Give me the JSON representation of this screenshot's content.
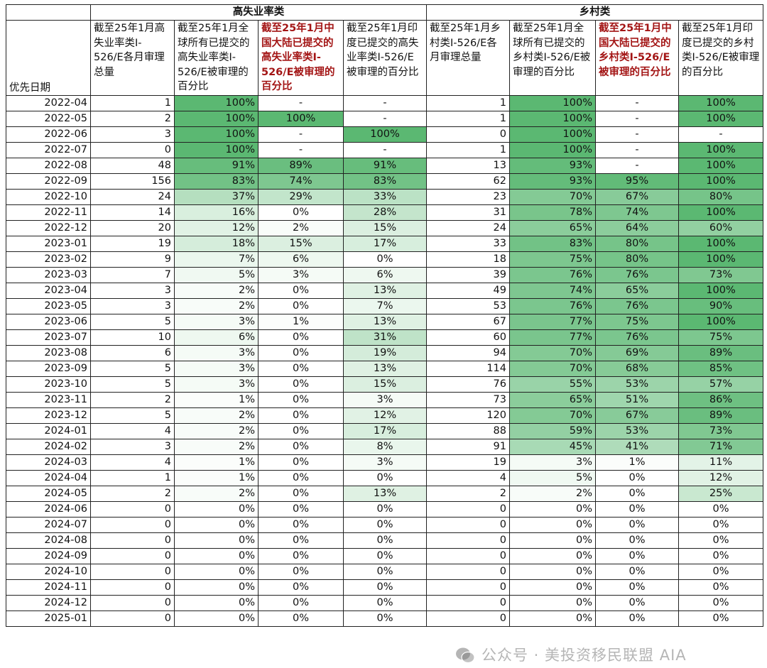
{
  "groups": {
    "corner": "",
    "high_unemployment": "高失业率类",
    "rural": "乡村类"
  },
  "headers": [
    {
      "text": "优先日期",
      "highlight": false
    },
    {
      "text": "截至25年1月高失业率类I-526/E各月审理总量",
      "highlight": false
    },
    {
      "text": "截至25年1月全球所有已提交的高失业率类I-526/E被审理的百分比",
      "highlight": false
    },
    {
      "text": "截至25年1月中国大陆已提交的高失业率类I-526/E被审理的百分比",
      "highlight": true
    },
    {
      "text": "截至25年1月印度已提交的高失业率类I-526/E被审理的百分比",
      "highlight": false
    },
    {
      "text": "截至25年1月乡村类I-526/E各月审理总量",
      "highlight": false
    },
    {
      "text": "截至25年1月全球所有已提交的乡村类I-526/E被审理的百分比",
      "highlight": false
    },
    {
      "text": "截至25年1月中国大陆已提交的乡村类I-526/E被审理的百分比",
      "highlight": true
    },
    {
      "text": "截至25年1月印度已提交的乡村类I-526/E被审理的百分比",
      "highlight": false
    }
  ],
  "colors": {
    "highlight_text": "#a31515",
    "scale_low": "#ffffff",
    "scale_high": "#5bb872"
  },
  "rows": [
    [
      "2022-04",
      "1",
      "100%",
      "-",
      "-",
      "1",
      "100%",
      "-",
      "100%"
    ],
    [
      "2022-05",
      "2",
      "100%",
      "100%",
      "-",
      "1",
      "100%",
      "-",
      "100%"
    ],
    [
      "2022-06",
      "3",
      "100%",
      "-",
      "100%",
      "0",
      "100%",
      "-",
      "-"
    ],
    [
      "2022-07",
      "0",
      "100%",
      "-",
      "-",
      "1",
      "100%",
      "-",
      "100%"
    ],
    [
      "2022-08",
      "48",
      "91%",
      "89%",
      "91%",
      "13",
      "93%",
      "-",
      "100%"
    ],
    [
      "2022-09",
      "156",
      "83%",
      "74%",
      "83%",
      "62",
      "93%",
      "95%",
      "100%"
    ],
    [
      "2022-10",
      "24",
      "37%",
      "29%",
      "33%",
      "23",
      "70%",
      "67%",
      "80%"
    ],
    [
      "2022-11",
      "14",
      "16%",
      "0%",
      "28%",
      "31",
      "78%",
      "74%",
      "100%"
    ],
    [
      "2022-12",
      "20",
      "12%",
      "2%",
      "15%",
      "24",
      "65%",
      "64%",
      "60%"
    ],
    [
      "2023-01",
      "19",
      "18%",
      "15%",
      "17%",
      "33",
      "83%",
      "80%",
      "100%"
    ],
    [
      "2023-02",
      "9",
      "7%",
      "6%",
      "0%",
      "18",
      "75%",
      "80%",
      "100%"
    ],
    [
      "2023-03",
      "7",
      "5%",
      "3%",
      "6%",
      "39",
      "76%",
      "76%",
      "73%"
    ],
    [
      "2023-04",
      "3",
      "2%",
      "0%",
      "13%",
      "49",
      "74%",
      "65%",
      "100%"
    ],
    [
      "2023-05",
      "3",
      "2%",
      "0%",
      "7%",
      "53",
      "76%",
      "76%",
      "90%"
    ],
    [
      "2023-06",
      "5",
      "3%",
      "1%",
      "13%",
      "67",
      "77%",
      "75%",
      "100%"
    ],
    [
      "2023-07",
      "10",
      "6%",
      "0%",
      "31%",
      "60",
      "77%",
      "76%",
      "75%"
    ],
    [
      "2023-08",
      "6",
      "3%",
      "0%",
      "19%",
      "94",
      "70%",
      "69%",
      "89%"
    ],
    [
      "2023-09",
      "5",
      "3%",
      "0%",
      "13%",
      "114",
      "70%",
      "68%",
      "85%"
    ],
    [
      "2023-10",
      "5",
      "3%",
      "0%",
      "15%",
      "76",
      "55%",
      "53%",
      "57%"
    ],
    [
      "2023-11",
      "2",
      "1%",
      "0%",
      "3%",
      "73",
      "65%",
      "51%",
      "86%"
    ],
    [
      "2023-12",
      "5",
      "2%",
      "0%",
      "12%",
      "120",
      "70%",
      "67%",
      "89%"
    ],
    [
      "2024-01",
      "4",
      "2%",
      "0%",
      "17%",
      "88",
      "59%",
      "53%",
      "73%"
    ],
    [
      "2024-02",
      "3",
      "2%",
      "0%",
      "8%",
      "91",
      "45%",
      "41%",
      "71%"
    ],
    [
      "2024-03",
      "4",
      "1%",
      "0%",
      "3%",
      "19",
      "3%",
      "1%",
      "11%"
    ],
    [
      "2024-04",
      "1",
      "1%",
      "0%",
      "0%",
      "4",
      "5%",
      "0%",
      "12%"
    ],
    [
      "2024-05",
      "2",
      "2%",
      "0%",
      "13%",
      "2",
      "2%",
      "0%",
      "25%"
    ],
    [
      "2024-06",
      "0",
      "0%",
      "0%",
      "0%",
      "0",
      "0%",
      "0%",
      "0%"
    ],
    [
      "2024-07",
      "0",
      "0%",
      "0%",
      "0%",
      "0",
      "0%",
      "0%",
      "0%"
    ],
    [
      "2024-08",
      "0",
      "0%",
      "0%",
      "0%",
      "0",
      "0%",
      "0%",
      "0%"
    ],
    [
      "2024-09",
      "0",
      "0%",
      "0%",
      "0%",
      "0",
      "0%",
      "0%",
      "0%"
    ],
    [
      "2024-10",
      "0",
      "0%",
      "0%",
      "0%",
      "0",
      "0%",
      "0%",
      "0%"
    ],
    [
      "2024-11",
      "0",
      "0%",
      "0%",
      "0%",
      "0",
      "0%",
      "0%",
      "0%"
    ],
    [
      "2024-12",
      "0",
      "0%",
      "0%",
      "0%",
      "0",
      "0%",
      "0%",
      "0%"
    ],
    [
      "2025-01",
      "0",
      "0%",
      "0%",
      "0%",
      "0",
      "0%",
      "0%",
      "0%"
    ]
  ],
  "watermark": {
    "text": "公众号 · 美投资移民联盟 AIA",
    "icon": "wechat-icon"
  }
}
